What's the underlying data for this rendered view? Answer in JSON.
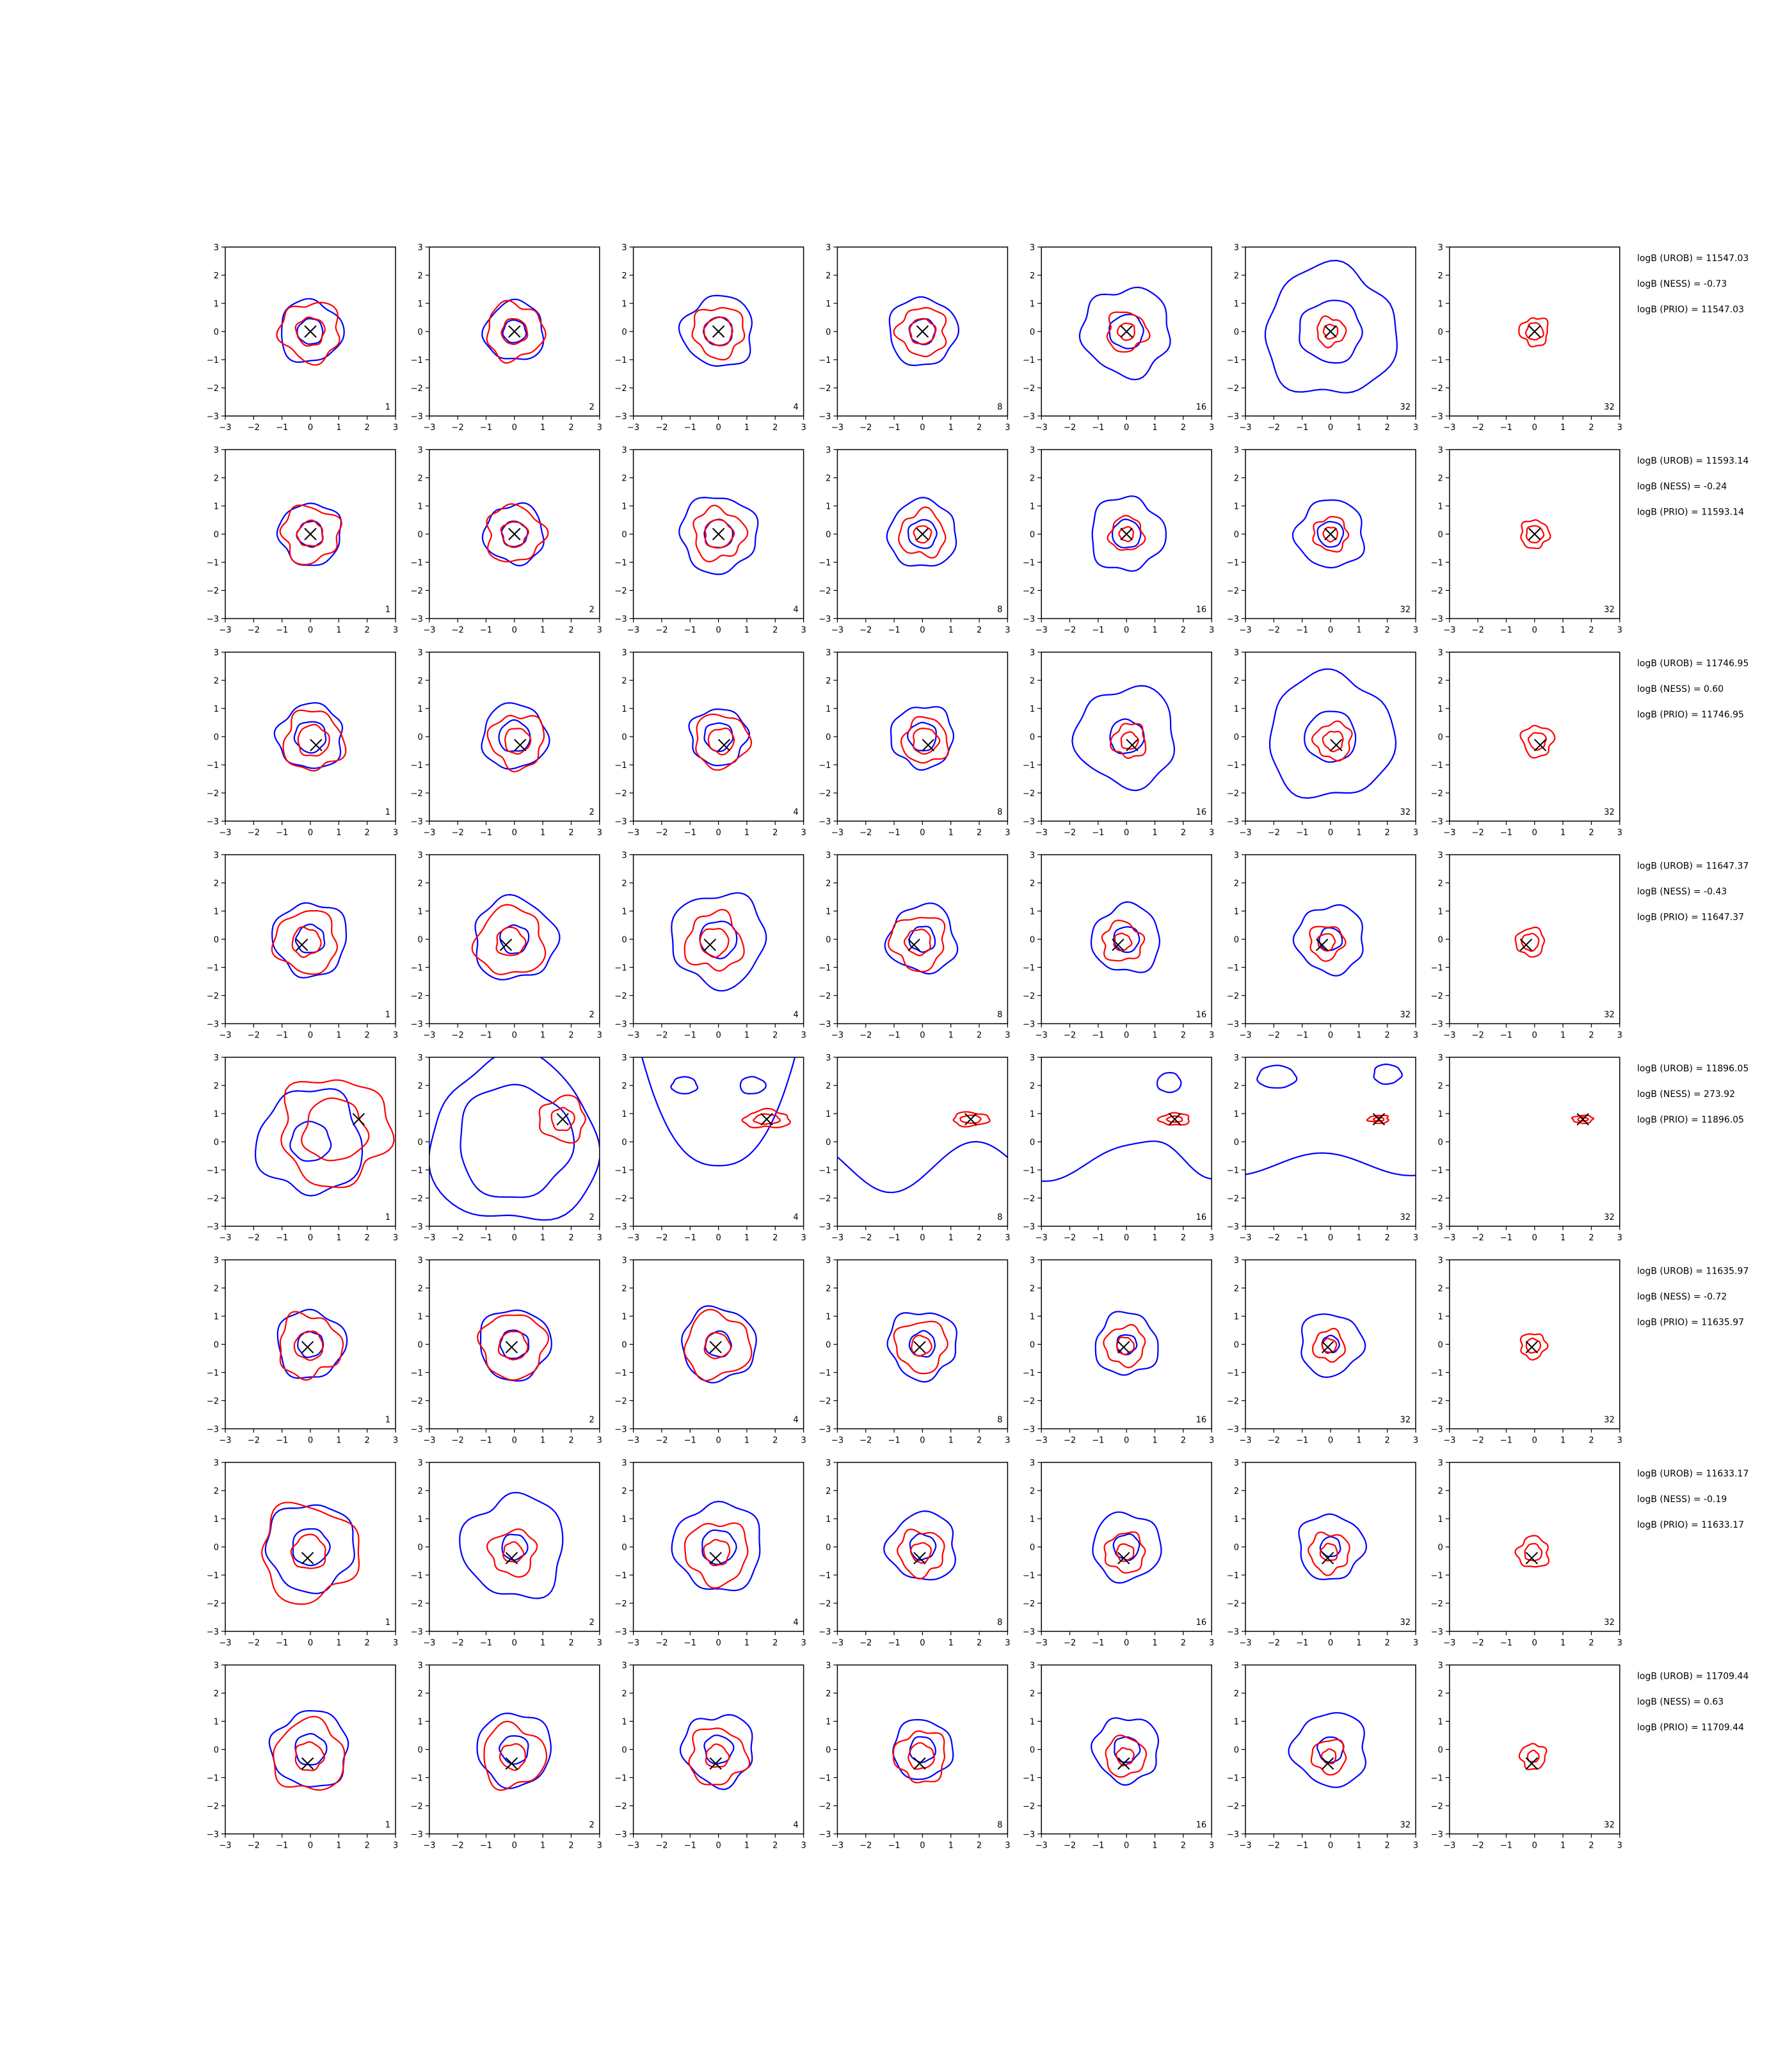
{
  "chart_data": {
    "type": "contour",
    "grid": {
      "rows": 8,
      "cols": 7
    },
    "xlim": [
      -3,
      3
    ],
    "ylim": [
      -3,
      3
    ],
    "ticks": [
      -3,
      -2,
      -1,
      0,
      1,
      2,
      3
    ],
    "tick_labels": [
      "−3",
      "−2",
      "−1",
      "0",
      "1",
      "2",
      "3"
    ],
    "series_colors": {
      "reference": "#0000ff",
      "estimate": "#ff0000",
      "marker": "#000000"
    },
    "panel_labels": [
      "1",
      "2",
      "4",
      "8",
      "16",
      "32",
      "32"
    ],
    "rows": [
      {
        "marker": [
          0.0,
          0.0
        ],
        "stats": [
          "logB (UROB) = 11547.03",
          "logB (NESS) = -0.73",
          "logB (PRIO) = 11547.03"
        ],
        "panels": [
          {
            "blue": [
              0.45,
              1.1
            ],
            "red": [
              0.5,
              1.05
            ]
          },
          {
            "blue": [
              0.4,
              1.05
            ],
            "red": [
              0.45,
              1.0
            ]
          },
          {
            "blue": [
              0.5,
              1.25
            ],
            "red": [
              0.5,
              0.9
            ]
          },
          {
            "blue": [
              0.45,
              1.2
            ],
            "red": [
              0.45,
              0.85
            ]
          },
          {
            "blue": [
              0.6,
              1.55
            ],
            "red": [
              0.3,
              0.7
            ]
          },
          {
            "blue": [
              1.1,
              2.3
            ],
            "red": [
              0.25,
              0.5
            ]
          },
          {
            "blue": [],
            "red": [
              0.3,
              0.5
            ]
          }
        ]
      },
      {
        "marker": [
          0.0,
          0.0
        ],
        "stats": [
          "logB (UROB) = 11593.14",
          "logB (NESS) = -0.24",
          "logB (PRIO) = 11593.14"
        ],
        "panels": [
          {
            "blue": [
              0.45,
              1.1
            ],
            "red": [
              0.45,
              1.0
            ]
          },
          {
            "blue": [
              0.45,
              1.05
            ],
            "red": [
              0.45,
              1.0
            ]
          },
          {
            "blue": [
              0.5,
              1.35
            ],
            "red": [
              0.5,
              0.9
            ]
          },
          {
            "blue": [
              0.5,
              1.2
            ],
            "red": [
              0.3,
              0.8
            ]
          },
          {
            "blue": [
              0.5,
              1.3
            ],
            "red": [
              0.25,
              0.6
            ]
          },
          {
            "blue": [
              0.45,
              1.2
            ],
            "red": [
              0.25,
              0.6
            ]
          },
          {
            "blue": [],
            "red": [
              0.3,
              0.5
            ]
          }
        ]
      },
      {
        "marker": [
          0.2,
          -0.3
        ],
        "stats": [
          "logB (UROB) = 11746.95",
          "logB (NESS) = 0.60",
          "logB (PRIO) = 11746.95"
        ],
        "panels": [
          {
            "blue": [
              0.55,
              1.15
            ],
            "red": [
              0.55,
              1.05
            ]
          },
          {
            "blue": [
              0.55,
              1.15
            ],
            "red": [
              0.45,
              0.95
            ]
          },
          {
            "blue": [
              0.5,
              1.0
            ],
            "red": [
              0.45,
              0.95
            ]
          },
          {
            "blue": [
              0.5,
              1.1
            ],
            "red": [
              0.45,
              0.8
            ]
          },
          {
            "blue": [
              0.6,
              1.75
            ],
            "red": [
              0.3,
              0.6
            ]
          },
          {
            "blue": [
              0.9,
              2.2
            ],
            "red": [
              0.35,
              0.65
            ]
          },
          {
            "blue": [],
            "red": [
              0.3,
              0.55
            ]
          }
        ]
      },
      {
        "marker": [
          -0.3,
          -0.2
        ],
        "stats": [
          "logB (UROB) = 11647.37",
          "logB (NESS) = -0.43",
          "logB (PRIO) = 11647.37"
        ],
        "panels": [
          {
            "blue": [
              0.5,
              1.3
            ],
            "red": [
              0.5,
              1.1
            ]
          },
          {
            "blue": [
              0.5,
              1.45
            ],
            "red": [
              0.5,
              1.2
            ]
          },
          {
            "blue": [
              0.65,
              1.65
            ],
            "red": [
              0.5,
              1.0
            ]
          },
          {
            "blue": [
              0.45,
              1.2
            ],
            "red": [
              0.45,
              0.95
            ]
          },
          {
            "blue": [
              0.45,
              1.2
            ],
            "red": [
              0.3,
              0.7
            ]
          },
          {
            "blue": [
              0.4,
              1.2
            ],
            "red": [
              0.3,
              0.6
            ]
          },
          {
            "blue": [],
            "red": [
              0.3,
              0.5
            ]
          }
        ]
      },
      {
        "marker": [
          1.7,
          0.8
        ],
        "stats": [
          "logB (UROB) = 11896.05",
          "logB (NESS) = 273.92",
          "logB (PRIO) = 11896.05"
        ],
        "panels": [
          {
            "blue": [
              0.7,
              1.85
            ],
            "red": [
              1.1,
              1.9
            ]
          },
          {
            "blue": [
              2.0,
              2.95
            ],
            "red": [
              0.4,
              0.8
            ]
          },
          {
            "blue": [],
            "red": [
              0.25,
              0.45
            ]
          },
          {
            "blue": [],
            "red": [
              0.2,
              0.35
            ]
          },
          {
            "blue": [],
            "red": [
              0.15,
              0.3
            ]
          },
          {
            "blue": [],
            "red": [
              0.1,
              0.2
            ]
          },
          {
            "blue": [],
            "red": [
              0.1,
              0.2
            ]
          }
        ]
      },
      {
        "marker": [
          -0.1,
          -0.1
        ],
        "stats": [
          "logB (UROB) = 11635.97",
          "logB (NESS) = -0.72",
          "logB (PRIO) = 11635.97"
        ],
        "panels": [
          {
            "blue": [
              0.45,
              1.2
            ],
            "red": [
              0.5,
              1.1
            ]
          },
          {
            "blue": [
              0.5,
              1.25
            ],
            "red": [
              0.5,
              1.15
            ]
          },
          {
            "blue": [
              0.45,
              1.3
            ],
            "red": [
              0.45,
              1.15
            ]
          },
          {
            "blue": [
              0.45,
              1.2
            ],
            "red": [
              0.35,
              0.9
            ]
          },
          {
            "blue": [
              0.35,
              1.1
            ],
            "red": [
              0.3,
              0.7
            ]
          },
          {
            "blue": [
              0.3,
              1.1
            ],
            "red": [
              0.25,
              0.55
            ]
          },
          {
            "blue": [],
            "red": [
              0.25,
              0.45
            ]
          }
        ]
      },
      {
        "marker": [
          -0.1,
          -0.4
        ],
        "stats": [
          "logB (UROB) = 11633.17",
          "logB (NESS) = -0.19",
          "logB (PRIO) = 11633.17"
        ],
        "panels": [
          {
            "blue": [
              0.65,
              1.55
            ],
            "red": [
              0.6,
              1.7
            ]
          },
          {
            "blue": [
              0.45,
              1.8
            ],
            "red": [
              0.35,
              0.8
            ]
          },
          {
            "blue": [
              0.6,
              1.55
            ],
            "red": [
              0.45,
              1.1
            ]
          },
          {
            "blue": [
              0.45,
              1.2
            ],
            "red": [
              0.35,
              0.8
            ]
          },
          {
            "blue": [
              0.45,
              1.2
            ],
            "red": [
              0.3,
              0.7
            ]
          },
          {
            "blue": [
              0.35,
              1.15
            ],
            "red": [
              0.3,
              0.7
            ]
          },
          {
            "blue": [],
            "red": [
              0.3,
              0.55
            ]
          }
        ]
      },
      {
        "marker": [
          -0.1,
          -0.5
        ],
        "stats": [
          "logB (UROB) = 11709.44",
          "logB (NESS) = 0.63",
          "logB (PRIO) = 11709.44"
        ],
        "panels": [
          {
            "blue": [
              0.55,
              1.35
            ],
            "red": [
              0.5,
              1.25
            ]
          },
          {
            "blue": [
              0.5,
              1.3
            ],
            "red": [
              0.45,
              1.1
            ]
          },
          {
            "blue": [
              0.5,
              1.25
            ],
            "red": [
              0.4,
              1.0
            ]
          },
          {
            "blue": [
              0.45,
              1.05
            ],
            "red": [
              0.45,
              0.9
            ]
          },
          {
            "blue": [
              0.45,
              1.15
            ],
            "red": [
              0.3,
              0.7
            ]
          },
          {
            "blue": [
              0.45,
              1.3
            ],
            "red": [
              0.25,
              0.6
            ]
          },
          {
            "blue": [],
            "red": [
              0.2,
              0.45
            ]
          }
        ]
      }
    ]
  }
}
